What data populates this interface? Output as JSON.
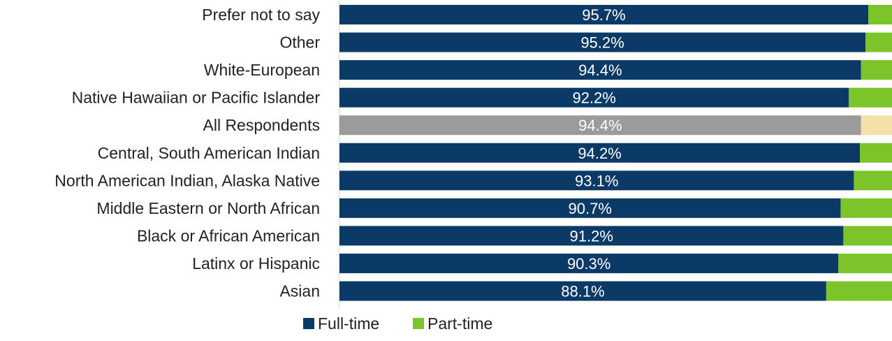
{
  "chart_data": {
    "type": "bar",
    "orientation": "horizontal",
    "stacked": true,
    "percent_stacked": true,
    "title": "",
    "xlabel": "",
    "ylabel": "",
    "xlim": [
      0,
      100
    ],
    "grid": false,
    "legend_position": "bottom",
    "categories": [
      "Prefer not to say",
      "Other",
      "White-European",
      "Native Hawaiian or Pacific Islander",
      "All Respondents",
      "Central, South American Indian",
      "North American Indian, Alaska Native",
      "Middle Eastern or North African",
      "Black or African American",
      "Latinx or Hispanic",
      "Asian"
    ],
    "series": [
      {
        "name": "Full-time",
        "color": "#0b3a66",
        "values": [
          95.7,
          95.2,
          94.4,
          92.2,
          94.4,
          94.2,
          93.1,
          90.7,
          91.2,
          90.3,
          88.1
        ],
        "labels": [
          "95.7%",
          "95.2%",
          "94.4%",
          "92.2%",
          "94.4%",
          "94.2%",
          "93.1%",
          "90.7%",
          "91.2%",
          "90.3%",
          "88.1%"
        ]
      },
      {
        "name": "Part-time",
        "color": "#7cc42a",
        "values": [
          4.3,
          4.8,
          5.6,
          7.8,
          5.6,
          5.8,
          6.9,
          9.3,
          8.8,
          9.7,
          11.9
        ]
      }
    ],
    "highlight": {
      "category": "All Respondents",
      "colors": [
        "#9b9b9b",
        "#f5e0a9"
      ]
    }
  }
}
